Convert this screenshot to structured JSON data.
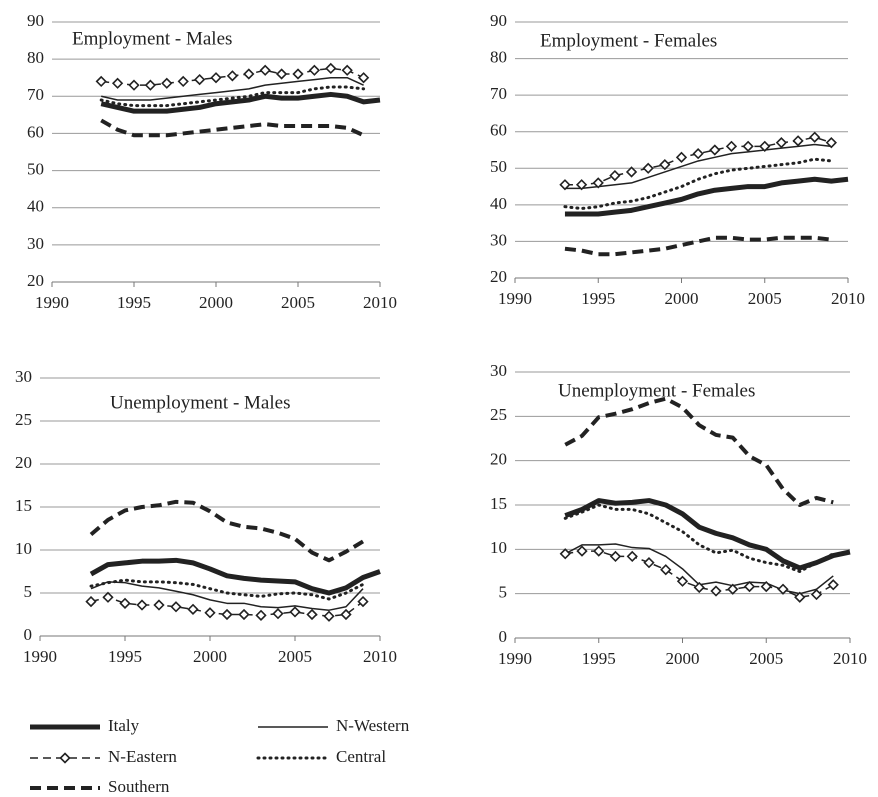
{
  "chart_data": [
    {
      "type": "line",
      "title": "Employment - Males",
      "x": [
        1993,
        1994,
        1995,
        1996,
        1997,
        1998,
        1999,
        2000,
        2001,
        2002,
        2003,
        2004,
        2005,
        2006,
        2007,
        2008,
        2009,
        2010
      ],
      "xlim": [
        1990,
        2010
      ],
      "xticks": [
        1990,
        1995,
        2000,
        2005,
        2010
      ],
      "ylim": [
        20,
        90
      ],
      "yticks": [
        20,
        30,
        40,
        50,
        60,
        70,
        80,
        90
      ],
      "grid": true,
      "series": [
        {
          "name": "Italy",
          "color": "#222222",
          "style": "thick",
          "values": [
            68,
            67,
            66,
            66,
            66,
            66.5,
            67,
            68,
            68.5,
            69,
            70,
            69.5,
            69.5,
            70,
            70.5,
            70,
            68.5,
            69
          ]
        },
        {
          "name": "N-Western",
          "color": "#222222",
          "style": "thin",
          "values": [
            70,
            69,
            69,
            69,
            69.5,
            70,
            70.5,
            71,
            71.5,
            72,
            73,
            73.5,
            74,
            74.5,
            75,
            75,
            73,
            null
          ]
        },
        {
          "name": "N-Eastern",
          "color": "#222222",
          "style": "dashed-diamond",
          "values": [
            74,
            73.5,
            73,
            73,
            73.5,
            74,
            74.5,
            75,
            75.5,
            76,
            77,
            76,
            76,
            77,
            77.5,
            77,
            75,
            null
          ]
        },
        {
          "name": "Central",
          "color": "#222222",
          "style": "dotted",
          "values": [
            69,
            68,
            67.5,
            67.5,
            67.5,
            68,
            68.5,
            69,
            69.5,
            70,
            71,
            71,
            71,
            72,
            72.5,
            72.5,
            72,
            null
          ]
        },
        {
          "name": "Southern",
          "color": "#222222",
          "style": "thick-dashed",
          "values": [
            63.5,
            61,
            59.5,
            59.5,
            59.5,
            60,
            60.5,
            61,
            61.5,
            62,
            62.5,
            62,
            62,
            62,
            62,
            61.5,
            59.5,
            null
          ]
        }
      ]
    },
    {
      "type": "line",
      "title": "Employment - Females",
      "x": [
        1993,
        1994,
        1995,
        1996,
        1997,
        1998,
        1999,
        2000,
        2001,
        2002,
        2003,
        2004,
        2005,
        2006,
        2007,
        2008,
        2009,
        2010
      ],
      "xlim": [
        1990,
        2010
      ],
      "xticks": [
        1990,
        1995,
        2000,
        2005,
        2010
      ],
      "ylim": [
        20,
        90
      ],
      "yticks": [
        20,
        30,
        40,
        50,
        60,
        70,
        80,
        90
      ],
      "grid": true,
      "series": [
        {
          "values": [
            37.5,
            37.5,
            37.5,
            38,
            38.5,
            39.5,
            40.5,
            41.5,
            43,
            44,
            44.5,
            45,
            45,
            46,
            46.5,
            47,
            46.5,
            47
          ]
        },
        {
          "values": [
            44.5,
            44.5,
            45,
            45.5,
            46,
            47.5,
            49,
            50.5,
            52,
            53,
            54,
            54.5,
            55,
            55.5,
            56,
            56.5,
            56,
            null
          ]
        },
        {
          "values": [
            45.5,
            45.5,
            46,
            48,
            49,
            50,
            51,
            53,
            54,
            55,
            56,
            56,
            56,
            57,
            57.5,
            58.5,
            57,
            null
          ]
        },
        {
          "values": [
            39.5,
            39,
            39.5,
            40.5,
            41,
            42,
            43.5,
            45,
            47,
            48.5,
            49.5,
            50,
            50.5,
            51,
            51.5,
            52.5,
            52,
            null
          ]
        },
        {
          "values": [
            28,
            27.5,
            26.5,
            26.5,
            27,
            27.5,
            28,
            29,
            30,
            31,
            31,
            30.5,
            30.5,
            31,
            31,
            31,
            30.5,
            null
          ]
        }
      ]
    },
    {
      "type": "line",
      "title": "Unemployment - Males",
      "x": [
        1993,
        1994,
        1995,
        1996,
        1997,
        1998,
        1999,
        2000,
        2001,
        2002,
        2003,
        2004,
        2005,
        2006,
        2007,
        2008,
        2009,
        2010
      ],
      "xlim": [
        1990,
        2010
      ],
      "xticks": [
        1990,
        1995,
        2000,
        2005,
        2010
      ],
      "ylim": [
        0,
        30
      ],
      "yticks": [
        0,
        5,
        10,
        15,
        20,
        25,
        30
      ],
      "grid": true,
      "series": [
        {
          "values": [
            7.2,
            8.3,
            8.5,
            8.7,
            8.7,
            8.8,
            8.5,
            7.8,
            7,
            6.7,
            6.5,
            6.4,
            6.3,
            5.5,
            5,
            5.6,
            6.8,
            7.5
          ]
        },
        {
          "values": [
            5.5,
            6.3,
            6.2,
            5.8,
            5.6,
            5.2,
            4.8,
            4.2,
            3.8,
            3.8,
            3.4,
            3.3,
            3.5,
            3.2,
            3,
            3.4,
            5.5,
            null
          ]
        },
        {
          "values": [
            4,
            4.5,
            3.8,
            3.6,
            3.6,
            3.4,
            3.1,
            2.7,
            2.5,
            2.5,
            2.4,
            2.6,
            2.8,
            2.5,
            2.3,
            2.5,
            4,
            null
          ]
        },
        {
          "values": [
            5.8,
            6.2,
            6.5,
            6.3,
            6.3,
            6.2,
            6,
            5.5,
            5,
            4.8,
            4.6,
            4.9,
            5,
            4.8,
            4.3,
            5,
            6,
            null
          ]
        },
        {
          "values": [
            11.8,
            13.5,
            14.6,
            15,
            15.2,
            15.6,
            15.5,
            14.5,
            13.2,
            12.7,
            12.5,
            12,
            11.3,
            9.7,
            8.8,
            9.8,
            11,
            null
          ]
        }
      ]
    },
    {
      "type": "line",
      "title": "Unemployment - Females",
      "x": [
        1993,
        1994,
        1995,
        1996,
        1997,
        1998,
        1999,
        2000,
        2001,
        2002,
        2003,
        2004,
        2005,
        2006,
        2007,
        2008,
        2009,
        2010
      ],
      "xlim": [
        1990,
        2010
      ],
      "xticks": [
        1990,
        1995,
        2000,
        2005,
        2010
      ],
      "ylim": [
        0,
        30
      ],
      "yticks": [
        0,
        5,
        10,
        15,
        20,
        25,
        30
      ],
      "grid": true,
      "series": [
        {
          "values": [
            13.8,
            14.5,
            15.5,
            15.2,
            15.3,
            15.5,
            15,
            14,
            12.5,
            11.8,
            11.3,
            10.5,
            10,
            8.7,
            7.9,
            8.5,
            9.3,
            9.7
          ]
        },
        {
          "values": [
            9.5,
            10.5,
            10.5,
            10.6,
            10.2,
            10.1,
            9.2,
            7.8,
            6,
            6.3,
            5.9,
            6.3,
            6.2,
            5.4,
            5,
            5.5,
            7,
            null
          ]
        },
        {
          "values": [
            9.5,
            9.8,
            9.8,
            9.2,
            9.2,
            8.5,
            7.7,
            6.4,
            5.7,
            5.3,
            5.5,
            5.8,
            5.8,
            5.5,
            4.6,
            4.9,
            6,
            null
          ]
        },
        {
          "values": [
            13.5,
            14.2,
            15,
            14.5,
            14.5,
            14,
            13,
            12,
            10.5,
            9.6,
            9.9,
            9,
            8.5,
            8.2,
            7.5,
            8.5,
            9.5,
            null
          ]
        },
        {
          "values": [
            21.8,
            22.8,
            24.9,
            25.3,
            25.8,
            26.5,
            27,
            26,
            24,
            22.9,
            22.6,
            20.5,
            19.5,
            16.8,
            15,
            15.8,
            15.3,
            null
          ]
        }
      ]
    }
  ]
}
